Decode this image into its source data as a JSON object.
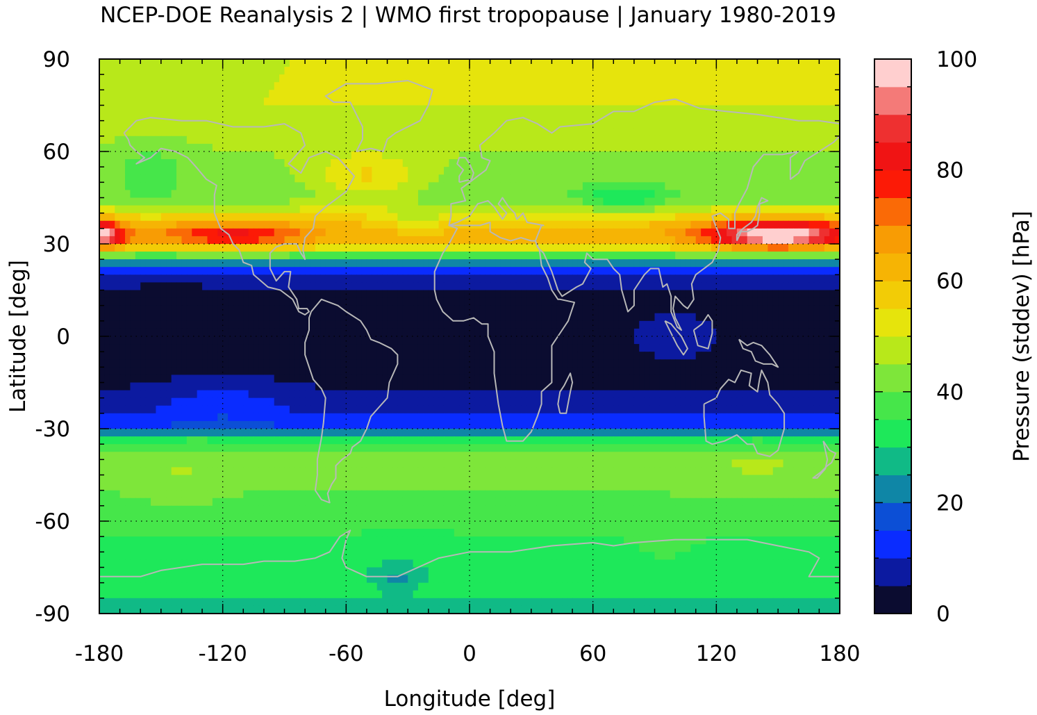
{
  "chart_data": {
    "type": "heatmap",
    "title": "NCEP-DOE Reanalysis 2 | WMO first tropopause | January 1980-2019",
    "xlabel": "Longitude [deg]",
    "ylabel": "Latitude [deg]",
    "colorbar_label": "Pressure (stddev) [hPa]",
    "xlim": [
      -180,
      180
    ],
    "ylim": [
      -90,
      90
    ],
    "clim": [
      0,
      100
    ],
    "x_ticks": [
      -180,
      -120,
      -60,
      0,
      60,
      120,
      180
    ],
    "y_ticks": [
      -90,
      -60,
      -30,
      0,
      30,
      60,
      90
    ],
    "x_tick_labels": [
      "-180",
      "-120",
      "-60",
      "0",
      "60",
      "120",
      "180"
    ],
    "y_tick_labels": [
      "-90",
      "-60",
      "-30",
      "0",
      "30",
      "60",
      "90"
    ],
    "colorbar_ticks": [
      0,
      20,
      40,
      60,
      80,
      100
    ],
    "colorbar_tick_labels": [
      "0",
      "20",
      "40",
      "60",
      "80",
      "100"
    ],
    "grid": true,
    "coastlines": true,
    "colorbar_levels": [
      {
        "from": 0,
        "to": 5,
        "color": "#0b0c30"
      },
      {
        "from": 5,
        "to": 10,
        "color": "#0c1aa0"
      },
      {
        "from": 10,
        "to": 15,
        "color": "#0a2cff"
      },
      {
        "from": 15,
        "to": 20,
        "color": "#0c4fd6"
      },
      {
        "from": 20,
        "to": 25,
        "color": "#0f86a6"
      },
      {
        "from": 25,
        "to": 30,
        "color": "#10ba86"
      },
      {
        "from": 30,
        "to": 35,
        "color": "#1ee85a"
      },
      {
        "from": 35,
        "to": 40,
        "color": "#46e64a"
      },
      {
        "from": 40,
        "to": 45,
        "color": "#7ee63a"
      },
      {
        "from": 45,
        "to": 50,
        "color": "#b8e81a"
      },
      {
        "from": 50,
        "to": 55,
        "color": "#e6e40c"
      },
      {
        "from": 55,
        "to": 60,
        "color": "#f2cc06"
      },
      {
        "from": 60,
        "to": 65,
        "color": "#f6b404"
      },
      {
        "from": 65,
        "to": 70,
        "color": "#f89c04"
      },
      {
        "from": 70,
        "to": 75,
        "color": "#fa6a06"
      },
      {
        "from": 75,
        "to": 80,
        "color": "#fc1a06"
      },
      {
        "from": 80,
        "to": 85,
        "color": "#f01414"
      },
      {
        "from": 85,
        "to": 90,
        "color": "#ee3030"
      },
      {
        "from": 90,
        "to": 95,
        "color": "#f47a78"
      },
      {
        "from": 95,
        "to": 100,
        "color": "#ffcfcf"
      }
    ],
    "zonal_profile": [
      {
        "lat": -90,
        "value": 27
      },
      {
        "lat": -80,
        "value": 32
      },
      {
        "lat": -70,
        "value": 30
      },
      {
        "lat": -60,
        "value": 38
      },
      {
        "lat": -50,
        "value": 40
      },
      {
        "lat": -40,
        "value": 42
      },
      {
        "lat": -33,
        "value": 33
      },
      {
        "lat": -30,
        "value": 15
      },
      {
        "lat": -25,
        "value": 9
      },
      {
        "lat": -15,
        "value": 4
      },
      {
        "lat": 0,
        "value": 4
      },
      {
        "lat": 15,
        "value": 4
      },
      {
        "lat": 20,
        "value": 8
      },
      {
        "lat": 23,
        "value": 18
      },
      {
        "lat": 26,
        "value": 38
      },
      {
        "lat": 30,
        "value": 60
      },
      {
        "lat": 35,
        "value": 62
      },
      {
        "lat": 40,
        "value": 52
      },
      {
        "lat": 45,
        "value": 42
      },
      {
        "lat": 60,
        "value": 45
      },
      {
        "lat": 75,
        "value": 50
      },
      {
        "lat": 90,
        "value": 50
      }
    ],
    "features": [
      {
        "name": "Pacific jet max (east)",
        "lon_range": [
          120,
          180
        ],
        "lat": 33,
        "value": 96
      },
      {
        "name": "Pacific jet max (west edge)",
        "lon_range": [
          -180,
          -165
        ],
        "lat": 33,
        "value": 92
      },
      {
        "name": "Central Asia low",
        "lon": 75,
        "lat": 45,
        "value": 28
      },
      {
        "name": "North Atlantic high",
        "lon": -50,
        "lat": 55,
        "value": 62
      },
      {
        "name": "Antarctic minimum",
        "lon": -35,
        "lat": -78,
        "value": 20
      }
    ]
  }
}
